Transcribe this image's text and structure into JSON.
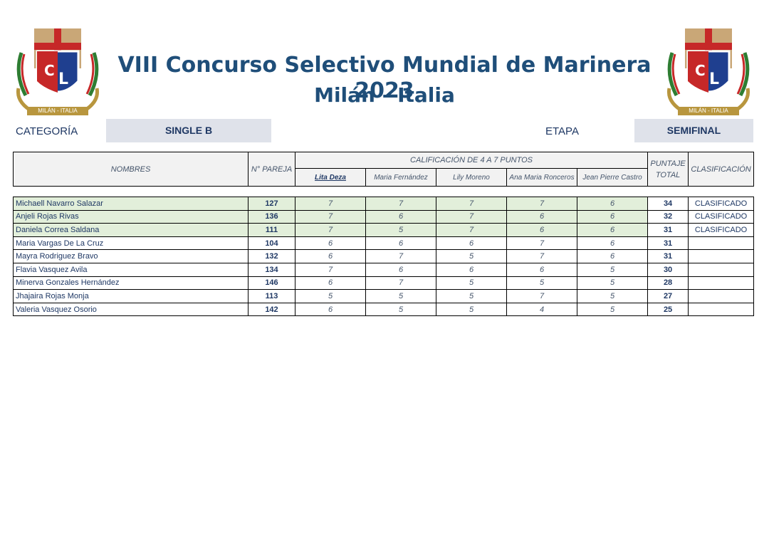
{
  "header": {
    "title": "VIII Concurso Selectivo Mundial de Marinera 2023",
    "subtitle": "Milán - Italia",
    "logo_text": "MILÁN - ITALIA",
    "categoria_label": "CATEGORÍA",
    "categoria_value": "SINGLE B",
    "etapa_label": "ETAPA",
    "etapa_value": "SEMIFINAL"
  },
  "table": {
    "col_nombres": "NOMBRES",
    "col_pareja": "N° PAREJA",
    "col_calificacion": "CALIFICACIÓN DE 4 A 7 PUNTOS",
    "col_puntaje_1": "PUNTAJE",
    "col_puntaje_2": "TOTAL",
    "col_clasificacion": "CLASIFICACIÓN",
    "judges": [
      "Lita Deza",
      "Maria Fernández",
      "Lily Moreno",
      "Ana Maria Ronceros",
      "Jean Pierre Castro"
    ],
    "rows": [
      {
        "name": "Michaell Navarro Salazar",
        "pareja": "127",
        "scores": [
          "7",
          "7",
          "7",
          "7",
          "6"
        ],
        "total": "34",
        "clasificacion": "CLASIFICADO"
      },
      {
        "name": "Anjeli Rojas Rivas",
        "pareja": "136",
        "scores": [
          "7",
          "6",
          "7",
          "6",
          "6"
        ],
        "total": "32",
        "clasificacion": "CLASIFICADO"
      },
      {
        "name": "Daniela Correa Saldana",
        "pareja": "111",
        "scores": [
          "7",
          "5",
          "7",
          "6",
          "6"
        ],
        "total": "31",
        "clasificacion": "CLASIFICADO"
      },
      {
        "name": "Maria Vargas De La Cruz",
        "pareja": "104",
        "scores": [
          "6",
          "6",
          "6",
          "7",
          "6"
        ],
        "total": "31",
        "clasificacion": ""
      },
      {
        "name": "Mayra Rodriguez Bravo",
        "pareja": "132",
        "scores": [
          "6",
          "7",
          "5",
          "7",
          "6"
        ],
        "total": "31",
        "clasificacion": ""
      },
      {
        "name": "Flavia Vasquez Avila",
        "pareja": "134",
        "scores": [
          "7",
          "6",
          "6",
          "6",
          "5"
        ],
        "total": "30",
        "clasificacion": ""
      },
      {
        "name": "Minerva Gonzales Hernández",
        "pareja": "146",
        "scores": [
          "6",
          "7",
          "5",
          "5",
          "5"
        ],
        "total": "28",
        "clasificacion": ""
      },
      {
        "name": "Jhajaira Rojas Monja",
        "pareja": "113",
        "scores": [
          "5",
          "5",
          "5",
          "7",
          "5"
        ],
        "total": "27",
        "clasificacion": ""
      },
      {
        "name": "Valeria Vasquez Osorio",
        "pareja": "142",
        "scores": [
          "6",
          "5",
          "5",
          "4",
          "5"
        ],
        "total": "25",
        "clasificacion": ""
      }
    ]
  }
}
